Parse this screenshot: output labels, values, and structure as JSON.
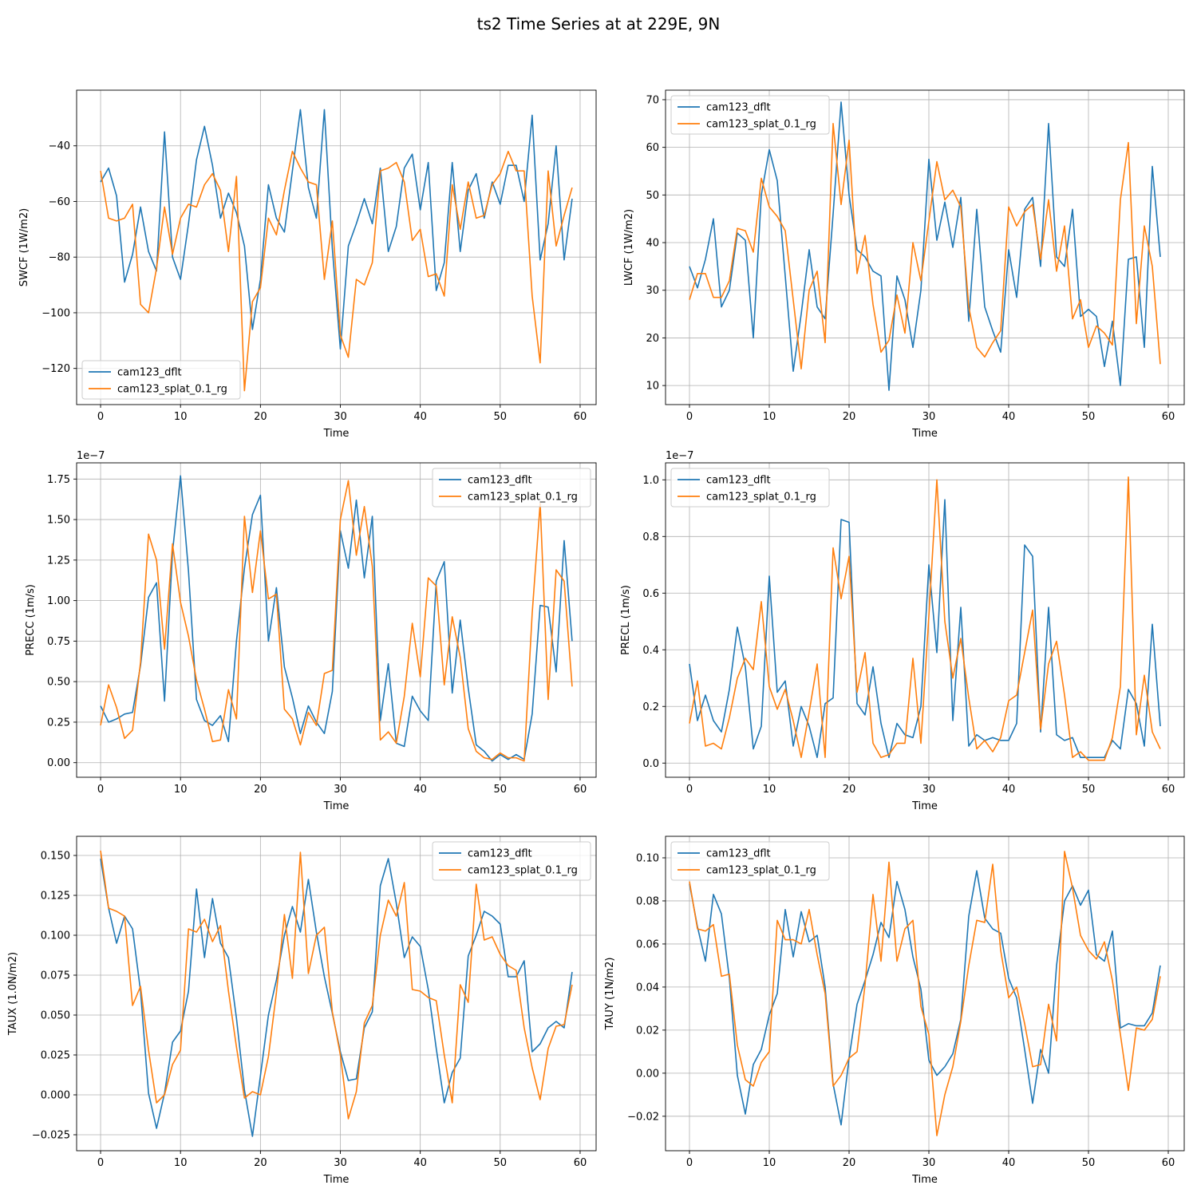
{
  "figure": {
    "title": "ts2 Time Series at at 229E, 9N"
  },
  "chart_data": [
    {
      "type": "line",
      "xlabel": "Time",
      "ylabel": "SWCF (1W/m2)",
      "xlim": [
        -3,
        62
      ],
      "ylim": [
        -133,
        -20
      ],
      "xticks": [
        0,
        10,
        20,
        30,
        40,
        50,
        60
      ],
      "xtick_labels": [
        "0",
        "10",
        "20",
        "30",
        "40",
        "50",
        "60"
      ],
      "yticks": [
        -120,
        -100,
        -80,
        -60,
        -40
      ],
      "ytick_labels": [
        "−120",
        "−100",
        "−80",
        "−60",
        "−40"
      ],
      "offset_label": "",
      "grid": true,
      "legend": "lower-left",
      "colors": [
        "#1f77b4",
        "#ff7f0e"
      ],
      "series": [
        {
          "name": "cam123_dflt",
          "values": [
            -53,
            -48,
            -58,
            -89,
            -79,
            -62,
            -78,
            -85,
            -35,
            -80,
            -88,
            -68,
            -45,
            -33,
            -47,
            -66,
            -57,
            -64,
            -76,
            -106,
            -88,
            -54,
            -66,
            -71,
            -49,
            -27,
            -55,
            -66,
            -27,
            -77,
            -113,
            -76,
            -68,
            -59,
            -68,
            -48,
            -78,
            -69,
            -48,
            -43,
            -63,
            -46,
            -92,
            -82,
            -46,
            -78,
            -56,
            -50,
            -66,
            -53,
            -61,
            -47,
            -47,
            -60,
            -29,
            -81,
            -68,
            -40,
            -81,
            -59
          ]
        },
        {
          "name": "cam123_splat_0.1_rg",
          "values": [
            -49,
            -66,
            -67,
            -66,
            -61,
            -97,
            -100,
            -84,
            -62,
            -79,
            -66,
            -61,
            -62,
            -54,
            -50,
            -56,
            -78,
            -51,
            -128,
            -96,
            -91,
            -66,
            -72,
            -56,
            -42,
            -48,
            -53,
            -54,
            -88,
            -67,
            -108,
            -116,
            -88,
            -90,
            -82,
            -49,
            -48,
            -46,
            -53,
            -74,
            -70,
            -87,
            -86,
            -94,
            -54,
            -70,
            -53,
            -66,
            -65,
            -54,
            -50,
            -42,
            -49,
            -49,
            -94,
            -118,
            -49,
            -76,
            -65,
            -55
          ]
        }
      ]
    },
    {
      "type": "line",
      "xlabel": "Time",
      "ylabel": "LWCF (1W/m2)",
      "xlim": [
        -3,
        62
      ],
      "ylim": [
        6,
        72
      ],
      "xticks": [
        0,
        10,
        20,
        30,
        40,
        50,
        60
      ],
      "xtick_labels": [
        "0",
        "10",
        "20",
        "30",
        "40",
        "50",
        "60"
      ],
      "yticks": [
        10,
        20,
        30,
        40,
        50,
        60,
        70
      ],
      "ytick_labels": [
        "10",
        "20",
        "30",
        "40",
        "50",
        "60",
        "70"
      ],
      "offset_label": "",
      "grid": true,
      "legend": "upper-left",
      "colors": [
        "#1f77b4",
        "#ff7f0e"
      ],
      "series": [
        {
          "name": "cam123_dflt",
          "values": [
            35,
            30.5,
            36.5,
            45,
            26.5,
            30,
            42,
            40.5,
            20,
            50,
            59.5,
            53,
            33,
            13,
            25,
            38.5,
            26.5,
            24,
            46,
            69.5,
            50,
            38.5,
            37,
            34,
            33,
            9,
            33,
            28,
            18,
            30,
            57.5,
            40.5,
            48.5,
            39,
            49.5,
            23.5,
            47,
            26.5,
            21.5,
            17,
            38.5,
            28.5,
            47,
            49.5,
            35,
            65,
            37,
            35,
            47,
            24.5,
            26,
            24.5,
            14,
            23.5,
            10,
            36.5,
            37,
            18,
            56,
            37
          ]
        },
        {
          "name": "cam123_splat_0.1_rg",
          "values": [
            28,
            33.5,
            33.5,
            28.5,
            28.5,
            32,
            43,
            42.5,
            38,
            53.5,
            47.5,
            45.5,
            42.5,
            28,
            13.5,
            30,
            34,
            19,
            65,
            48,
            61.5,
            33.5,
            41.5,
            27,
            17,
            19.5,
            29,
            21,
            40,
            32,
            44.5,
            57,
            49,
            51,
            47.5,
            26.5,
            18,
            16,
            19,
            21.5,
            47.5,
            43.5,
            46.5,
            48,
            36.5,
            49,
            34,
            43.5,
            24,
            28,
            18,
            22.5,
            21,
            18.5,
            49,
            61,
            23,
            43.5,
            35,
            14.5
          ]
        }
      ]
    },
    {
      "type": "line",
      "xlabel": "Time",
      "ylabel": "PRECC (1m/s)",
      "xlim": [
        -3,
        62
      ],
      "ylim": [
        -0.09,
        1.85
      ],
      "xticks": [
        0,
        10,
        20,
        30,
        40,
        50,
        60
      ],
      "xtick_labels": [
        "0",
        "10",
        "20",
        "30",
        "40",
        "50",
        "60"
      ],
      "yticks": [
        0,
        0.25,
        0.5,
        0.75,
        1.0,
        1.25,
        1.5,
        1.75
      ],
      "ytick_labels": [
        "0.00",
        "0.25",
        "0.50",
        "0.75",
        "1.00",
        "1.25",
        "1.50",
        "1.75"
      ],
      "offset_label": "1e−7",
      "grid": true,
      "legend": "upper-right",
      "colors": [
        "#1f77b4",
        "#ff7f0e"
      ],
      "series": [
        {
          "name": "cam123_dflt",
          "values": [
            0.35,
            0.25,
            0.27,
            0.3,
            0.31,
            0.6,
            1.02,
            1.11,
            0.38,
            1.3,
            1.77,
            1.18,
            0.39,
            0.26,
            0.23,
            0.29,
            0.13,
            0.75,
            1.2,
            1.53,
            1.65,
            0.75,
            1.08,
            0.59,
            0.4,
            0.18,
            0.35,
            0.25,
            0.18,
            0.44,
            1.43,
            1.2,
            1.62,
            1.14,
            1.52,
            0.26,
            0.61,
            0.12,
            0.1,
            0.41,
            0.32,
            0.26,
            1.12,
            1.24,
            0.43,
            0.88,
            0.46,
            0.11,
            0.07,
            0.01,
            0.05,
            0.02,
            0.05,
            0.02,
            0.3,
            0.97,
            0.96,
            0.56,
            1.37,
            0.75
          ]
        },
        {
          "name": "cam123_splat_0.1_rg",
          "values": [
            0.23,
            0.48,
            0.34,
            0.15,
            0.2,
            0.62,
            1.41,
            1.25,
            0.7,
            1.35,
            0.99,
            0.78,
            0.51,
            0.33,
            0.13,
            0.14,
            0.45,
            0.27,
            1.52,
            1.05,
            1.43,
            1.01,
            1.04,
            0.33,
            0.27,
            0.11,
            0.31,
            0.23,
            0.55,
            0.57,
            1.5,
            1.74,
            1.28,
            1.58,
            1.21,
            0.14,
            0.19,
            0.12,
            0.41,
            0.86,
            0.53,
            1.14,
            1.09,
            0.48,
            0.9,
            0.65,
            0.21,
            0.07,
            0.03,
            0.02,
            0.06,
            0.03,
            0.03,
            0.01,
            0.92,
            1.6,
            0.39,
            1.19,
            1.12,
            0.47
          ]
        }
      ]
    },
    {
      "type": "line",
      "xlabel": "Time",
      "ylabel": "PRECL (1m/s)",
      "xlim": [
        -3,
        62
      ],
      "ylim": [
        -0.05,
        1.06
      ],
      "xticks": [
        0,
        10,
        20,
        30,
        40,
        50,
        60
      ],
      "xtick_labels": [
        "0",
        "10",
        "20",
        "30",
        "40",
        "50",
        "60"
      ],
      "yticks": [
        0,
        0.2,
        0.4,
        0.6,
        0.8,
        1.0
      ],
      "ytick_labels": [
        "0.0",
        "0.2",
        "0.4",
        "0.6",
        "0.8",
        "1.0"
      ],
      "offset_label": "1e−7",
      "grid": true,
      "legend": "upper-left",
      "colors": [
        "#1f77b4",
        "#ff7f0e"
      ],
      "series": [
        {
          "name": "cam123_dflt",
          "values": [
            0.35,
            0.15,
            0.24,
            0.15,
            0.11,
            0.26,
            0.48,
            0.34,
            0.05,
            0.13,
            0.66,
            0.25,
            0.29,
            0.06,
            0.2,
            0.13,
            0.02,
            0.21,
            0.23,
            0.86,
            0.85,
            0.21,
            0.17,
            0.34,
            0.14,
            0.02,
            0.14,
            0.1,
            0.09,
            0.2,
            0.7,
            0.39,
            0.93,
            0.15,
            0.55,
            0.06,
            0.1,
            0.08,
            0.09,
            0.08,
            0.08,
            0.14,
            0.77,
            0.73,
            0.11,
            0.55,
            0.1,
            0.08,
            0.09,
            0.02,
            0.02,
            0.02,
            0.02,
            0.08,
            0.05,
            0.26,
            0.21,
            0.06,
            0.49,
            0.13
          ]
        },
        {
          "name": "cam123_splat_0.1_rg",
          "values": [
            0.14,
            0.29,
            0.06,
            0.07,
            0.05,
            0.16,
            0.3,
            0.37,
            0.33,
            0.57,
            0.27,
            0.19,
            0.26,
            0.15,
            0.02,
            0.18,
            0.35,
            0.02,
            0.76,
            0.58,
            0.73,
            0.25,
            0.39,
            0.07,
            0.02,
            0.03,
            0.07,
            0.07,
            0.37,
            0.07,
            0.52,
            1.0,
            0.5,
            0.3,
            0.44,
            0.23,
            0.05,
            0.08,
            0.04,
            0.09,
            0.22,
            0.24,
            0.39,
            0.54,
            0.12,
            0.35,
            0.43,
            0.24,
            0.02,
            0.04,
            0.01,
            0.01,
            0.01,
            0.09,
            0.27,
            1.01,
            0.1,
            0.31,
            0.11,
            0.05
          ]
        }
      ]
    },
    {
      "type": "line",
      "xlabel": "Time",
      "ylabel": "TAUX (1.0N/m2)",
      "xlim": [
        -3,
        62
      ],
      "ylim": [
        -0.035,
        0.162
      ],
      "xticks": [
        0,
        10,
        20,
        30,
        40,
        50,
        60
      ],
      "xtick_labels": [
        "0",
        "10",
        "20",
        "30",
        "40",
        "50",
        "60"
      ],
      "yticks": [
        -0.025,
        0,
        0.025,
        0.05,
        0.075,
        0.1,
        0.125,
        0.15
      ],
      "ytick_labels": [
        "−0.025",
        "0.000",
        "0.025",
        "0.050",
        "0.075",
        "0.100",
        "0.125",
        "0.150"
      ],
      "offset_label": "",
      "grid": true,
      "legend": "upper-right",
      "colors": [
        "#1f77b4",
        "#ff7f0e"
      ],
      "series": [
        {
          "name": "cam123_dflt",
          "values": [
            0.148,
            0.117,
            0.095,
            0.112,
            0.104,
            0.065,
            0.001,
            -0.021,
            0.001,
            0.033,
            0.04,
            0.065,
            0.129,
            0.086,
            0.123,
            0.095,
            0.086,
            0.048,
            0.003,
            -0.026,
            0.012,
            0.05,
            0.072,
            0.1,
            0.118,
            0.102,
            0.135,
            0.102,
            0.074,
            0.051,
            0.027,
            0.009,
            0.01,
            0.042,
            0.052,
            0.131,
            0.148,
            0.12,
            0.086,
            0.099,
            0.093,
            0.066,
            0.029,
            -0.005,
            0.014,
            0.023,
            0.087,
            0.1,
            0.115,
            0.112,
            0.107,
            0.074,
            0.074,
            0.084,
            0.027,
            0.032,
            0.042,
            0.046,
            0.042,
            0.077
          ]
        },
        {
          "name": "cam123_splat_0.1_rg",
          "values": [
            0.153,
            0.117,
            0.115,
            0.112,
            0.056,
            0.068,
            0.028,
            -0.005,
            0.0,
            0.019,
            0.028,
            0.104,
            0.102,
            0.11,
            0.096,
            0.106,
            0.065,
            0.03,
            -0.002,
            0.002,
            0.0,
            0.024,
            0.064,
            0.113,
            0.073,
            0.152,
            0.076,
            0.1,
            0.105,
            0.052,
            0.025,
            -0.015,
            0.002,
            0.045,
            0.056,
            0.1,
            0.122,
            0.112,
            0.133,
            0.066,
            0.065,
            0.061,
            0.059,
            0.025,
            -0.005,
            0.069,
            0.058,
            0.132,
            0.097,
            0.099,
            0.088,
            0.081,
            0.078,
            0.042,
            0.017,
            -0.003,
            0.029,
            0.043,
            0.044,
            0.069
          ]
        }
      ]
    },
    {
      "type": "line",
      "xlabel": "Time",
      "ylabel": "TAUY (1N/m2)",
      "xlim": [
        -3,
        62
      ],
      "ylim": [
        -0.036,
        0.11
      ],
      "xticks": [
        0,
        10,
        20,
        30,
        40,
        50,
        60
      ],
      "xtick_labels": [
        "0",
        "10",
        "20",
        "30",
        "40",
        "50",
        "60"
      ],
      "yticks": [
        -0.02,
        0,
        0.02,
        0.04,
        0.06,
        0.08,
        0.1
      ],
      "ytick_labels": [
        "−0.02",
        "0.00",
        "0.02",
        "0.04",
        "0.06",
        "0.08",
        "0.10"
      ],
      "offset_label": "",
      "grid": true,
      "legend": "upper-left",
      "colors": [
        "#1f77b4",
        "#ff7f0e"
      ],
      "series": [
        {
          "name": "cam123_dflt",
          "values": [
            0.088,
            0.068,
            0.052,
            0.083,
            0.074,
            0.044,
            -0.001,
            -0.019,
            0.004,
            0.011,
            0.027,
            0.037,
            0.076,
            0.054,
            0.075,
            0.061,
            0.064,
            0.04,
            -0.005,
            -0.024,
            0.007,
            0.032,
            0.043,
            0.055,
            0.07,
            0.063,
            0.089,
            0.076,
            0.054,
            0.039,
            0.006,
            -0.001,
            0.003,
            0.009,
            0.025,
            0.073,
            0.094,
            0.072,
            0.067,
            0.065,
            0.044,
            0.035,
            0.011,
            -0.014,
            0.011,
            0.0,
            0.05,
            0.08,
            0.087,
            0.078,
            0.085,
            0.055,
            0.052,
            0.066,
            0.021,
            0.023,
            0.022,
            0.022,
            0.028,
            0.05
          ]
        },
        {
          "name": "cam123_splat_0.1_rg",
          "values": [
            0.089,
            0.067,
            0.066,
            0.069,
            0.045,
            0.046,
            0.013,
            -0.003,
            -0.006,
            0.005,
            0.01,
            0.071,
            0.062,
            0.062,
            0.06,
            0.076,
            0.055,
            0.037,
            -0.006,
            -0.001,
            0.007,
            0.01,
            0.041,
            0.083,
            0.052,
            0.098,
            0.052,
            0.067,
            0.071,
            0.031,
            0.018,
            -0.029,
            -0.01,
            0.003,
            0.024,
            0.05,
            0.071,
            0.07,
            0.097,
            0.057,
            0.035,
            0.04,
            0.023,
            0.003,
            0.004,
            0.032,
            0.015,
            0.103,
            0.086,
            0.064,
            0.057,
            0.053,
            0.061,
            0.043,
            0.018,
            -0.008,
            0.021,
            0.02,
            0.025,
            0.045
          ]
        }
      ]
    }
  ]
}
